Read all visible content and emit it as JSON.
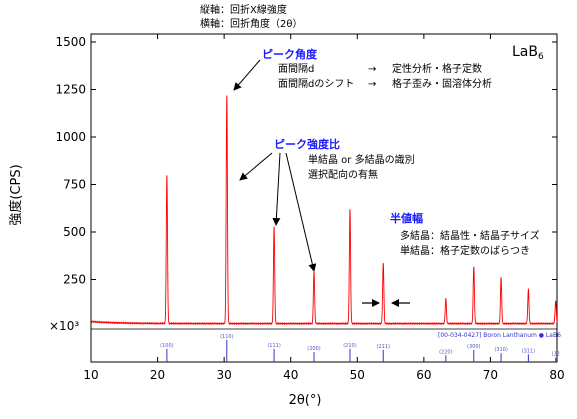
{
  "header": {
    "line1": "縦軸：回折X線強度",
    "line2": "横軸：回折角度（2θ）"
  },
  "chart_data": {
    "type": "line",
    "xlabel": "2θ(°)",
    "ylabel": "強度(CPS)",
    "y_multiplier": "×10³",
    "xlim": [
      10,
      80
    ],
    "ylim": [
      0,
      1500
    ],
    "x_ticks": [
      10,
      20,
      30,
      40,
      50,
      60,
      70,
      80
    ],
    "y_ticks": [
      250,
      500,
      750,
      1000,
      1250,
      1500
    ],
    "grid": false,
    "series": [
      {
        "color": "#ff0000",
        "baseline": 18,
        "peaks": [
          {
            "x": 21.4,
            "y": 780
          },
          {
            "x": 30.4,
            "y": 1200
          },
          {
            "x": 37.5,
            "y": 510
          },
          {
            "x": 43.5,
            "y": 275
          },
          {
            "x": 48.9,
            "y": 600
          },
          {
            "x": 53.9,
            "y": 320
          },
          {
            "x": 63.3,
            "y": 130
          },
          {
            "x": 67.5,
            "y": 300
          },
          {
            "x": 71.6,
            "y": 240
          },
          {
            "x": 75.7,
            "y": 180
          },
          {
            "x": 79.8,
            "y": 120
          }
        ]
      }
    ],
    "reference": {
      "label": "[00-034-0427] Boron Lanthanum ● LaB6",
      "color": "#3333cc",
      "lines": [
        {
          "x": 21.4,
          "rel": 0.6,
          "hkl": "(100)"
        },
        {
          "x": 30.4,
          "rel": 1.0,
          "hkl": "(110)"
        },
        {
          "x": 37.5,
          "rel": 0.6,
          "hkl": "(111)"
        },
        {
          "x": 43.5,
          "rel": 0.45,
          "hkl": "(200)"
        },
        {
          "x": 48.9,
          "rel": 0.6,
          "hkl": "(210)"
        },
        {
          "x": 53.9,
          "rel": 0.55,
          "hkl": "(211)"
        },
        {
          "x": 63.3,
          "rel": 0.3,
          "hkl": "(220)"
        },
        {
          "x": 67.5,
          "rel": 0.55,
          "hkl": "(300)"
        },
        {
          "x": 71.6,
          "rel": 0.4,
          "hkl": "(310)"
        },
        {
          "x": 75.7,
          "rel": 0.35,
          "hkl": "(311)"
        },
        {
          "x": 79.8,
          "rel": 0.2,
          "hkl": "(22"
        }
      ]
    },
    "sample_label": "LaB",
    "sample_sub": "6"
  },
  "annotations": {
    "peak_angle": {
      "title": "ピーク角度",
      "line1_left": "面間隔d",
      "line1_arrow": "→",
      "line1_right": "定性分析・格子定数",
      "line2_left": "面間隔dのシフト",
      "line2_arrow": "→",
      "line2_right": "格子歪み・固溶体分析"
    },
    "peak_ratio": {
      "title": "ピーク強度比",
      "line1": "単結晶 or 多結晶の識別",
      "line2": "選択配向の有無"
    },
    "fwhm": {
      "title": "半値幅",
      "line1": "多結晶：結晶性・結晶子サイズ",
      "line2": "単結晶：格子定数のばらつき"
    }
  }
}
